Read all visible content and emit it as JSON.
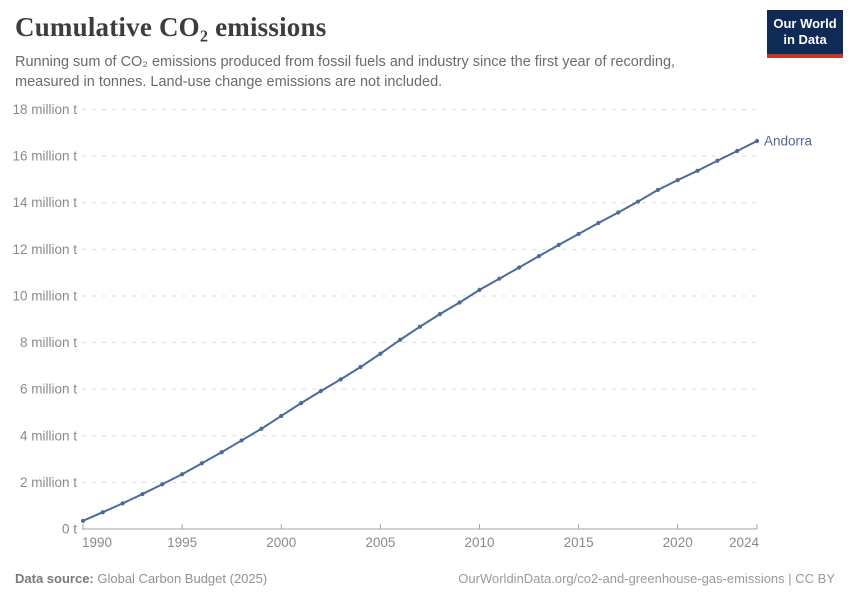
{
  "header": {
    "title": "Cumulative CO₂ emissions",
    "subtitle": "Running sum of CO₂ emissions produced from fossil fuels and industry since the first year of recording, measured in tonnes. Land-use change emissions are not included.",
    "logo": {
      "line1": "Our World",
      "line2": "in Data",
      "bg_color": "#0f2a54",
      "stripe_color": "#c0392b"
    }
  },
  "chart_data": {
    "type": "line",
    "title": "Cumulative CO₂ emissions",
    "xlabel": "",
    "ylabel": "",
    "unit": "million t",
    "xlim": [
      1990,
      2024
    ],
    "ylim": [
      0,
      18
    ],
    "grid": "dashed-horizontal",
    "legend_position": "end-of-line-label",
    "x_ticks": [
      1990,
      1995,
      2000,
      2005,
      2010,
      2015,
      2020,
      2024
    ],
    "y_ticks": [
      0,
      2,
      4,
      6,
      8,
      10,
      12,
      14,
      16,
      18
    ],
    "y_tick_labels": [
      "0 t",
      "2 million t",
      "4 million t",
      "6 million t",
      "8 million t",
      "10 million t",
      "12 million t",
      "14 million t",
      "16 million t",
      "18 million t"
    ],
    "series": [
      {
        "name": "Andorra",
        "color": "#4C6A9C",
        "x": [
          1990,
          1991,
          1992,
          1993,
          1994,
          1995,
          1996,
          1997,
          1998,
          1999,
          2000,
          2001,
          2002,
          2003,
          2004,
          2005,
          2006,
          2007,
          2008,
          2009,
          2010,
          2011,
          2012,
          2013,
          2014,
          2015,
          2016,
          2017,
          2018,
          2019,
          2020,
          2021,
          2022,
          2023,
          2024
        ],
        "values": [
          0.35,
          0.72,
          1.1,
          1.5,
          1.92,
          2.35,
          2.82,
          3.3,
          3.8,
          4.3,
          4.85,
          5.4,
          5.92,
          6.42,
          6.95,
          7.52,
          8.12,
          8.68,
          9.22,
          9.72,
          10.26,
          10.74,
          11.22,
          11.71,
          12.19,
          12.66,
          13.13,
          13.58,
          14.05,
          14.55,
          14.97,
          15.37,
          15.8,
          16.22,
          16.65
        ]
      }
    ]
  },
  "footer": {
    "source_label": "Data source:",
    "source_name": " Global Carbon Budget (2025)",
    "link": "OurWorldinData.org/co2-and-greenhouse-gas-emissions | CC BY"
  },
  "colors": {
    "line": "#4C6A9C",
    "grid": "#dcdcdc",
    "axis": "#a3a3a3",
    "tick_text": "#8a8a8a",
    "title_text": "#3d3d3d",
    "subtitle_text": "#6b6b6b"
  }
}
